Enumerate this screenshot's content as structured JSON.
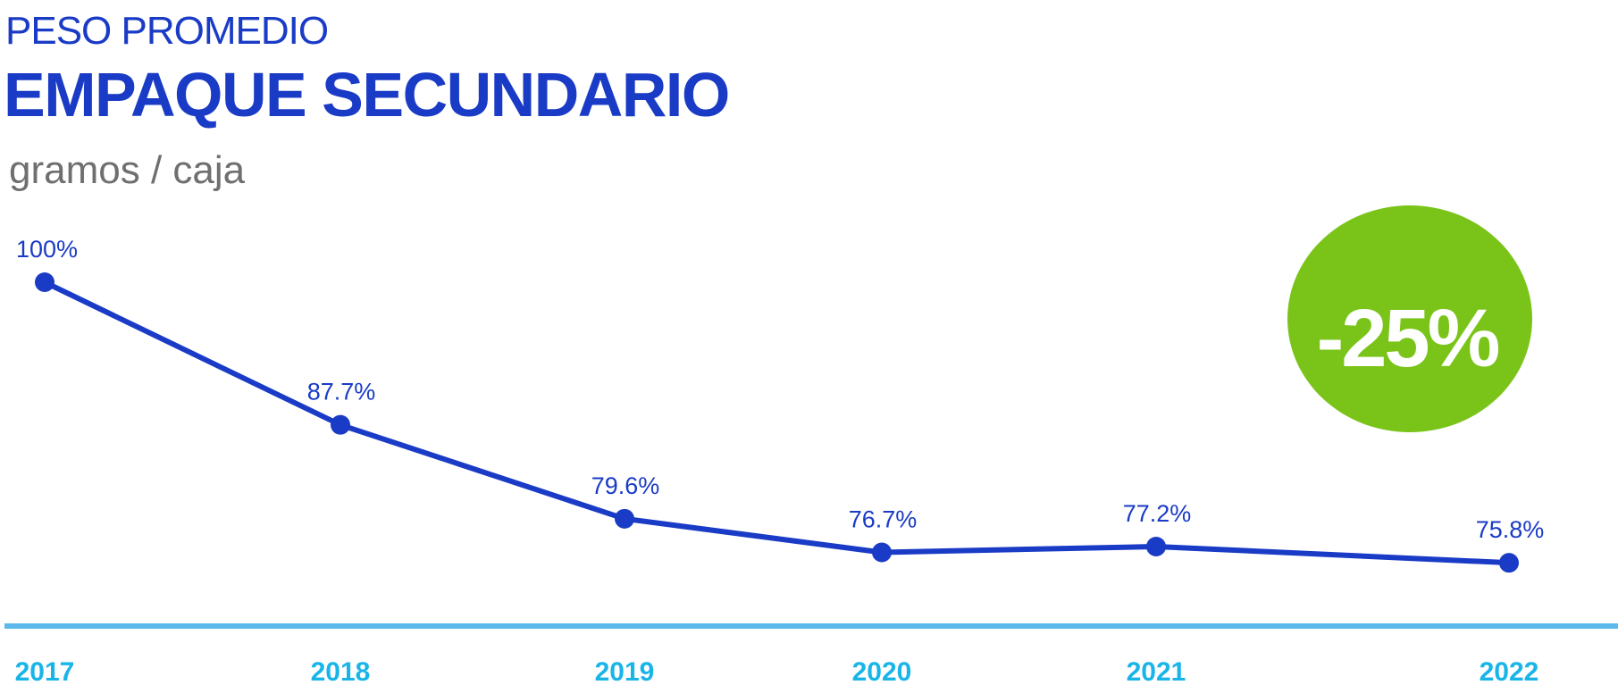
{
  "header": {
    "overline": "PESO PROMEDIO",
    "title": "EMPAQUE SECUNDARIO",
    "unit": "gramos / caja"
  },
  "badge": {
    "text": "-25%",
    "color": "#7ac41a"
  },
  "colors": {
    "line": "#1a3bc6",
    "axis": "#5ab9ea",
    "year_labels": "#19b5e8"
  },
  "chart_data": {
    "type": "line",
    "x": [
      "2017",
      "2018",
      "2019",
      "2020",
      "2021",
      "2022"
    ],
    "series": [
      {
        "values": [
          100,
          87.7,
          79.6,
          76.7,
          77.2,
          75.8
        ]
      }
    ],
    "data_labels": [
      "100%",
      "87.7%",
      "79.6%",
      "76.7%",
      "77.2%",
      "75.8%"
    ],
    "ylim": [
      72,
      100
    ],
    "grid": false,
    "legend": "none"
  }
}
